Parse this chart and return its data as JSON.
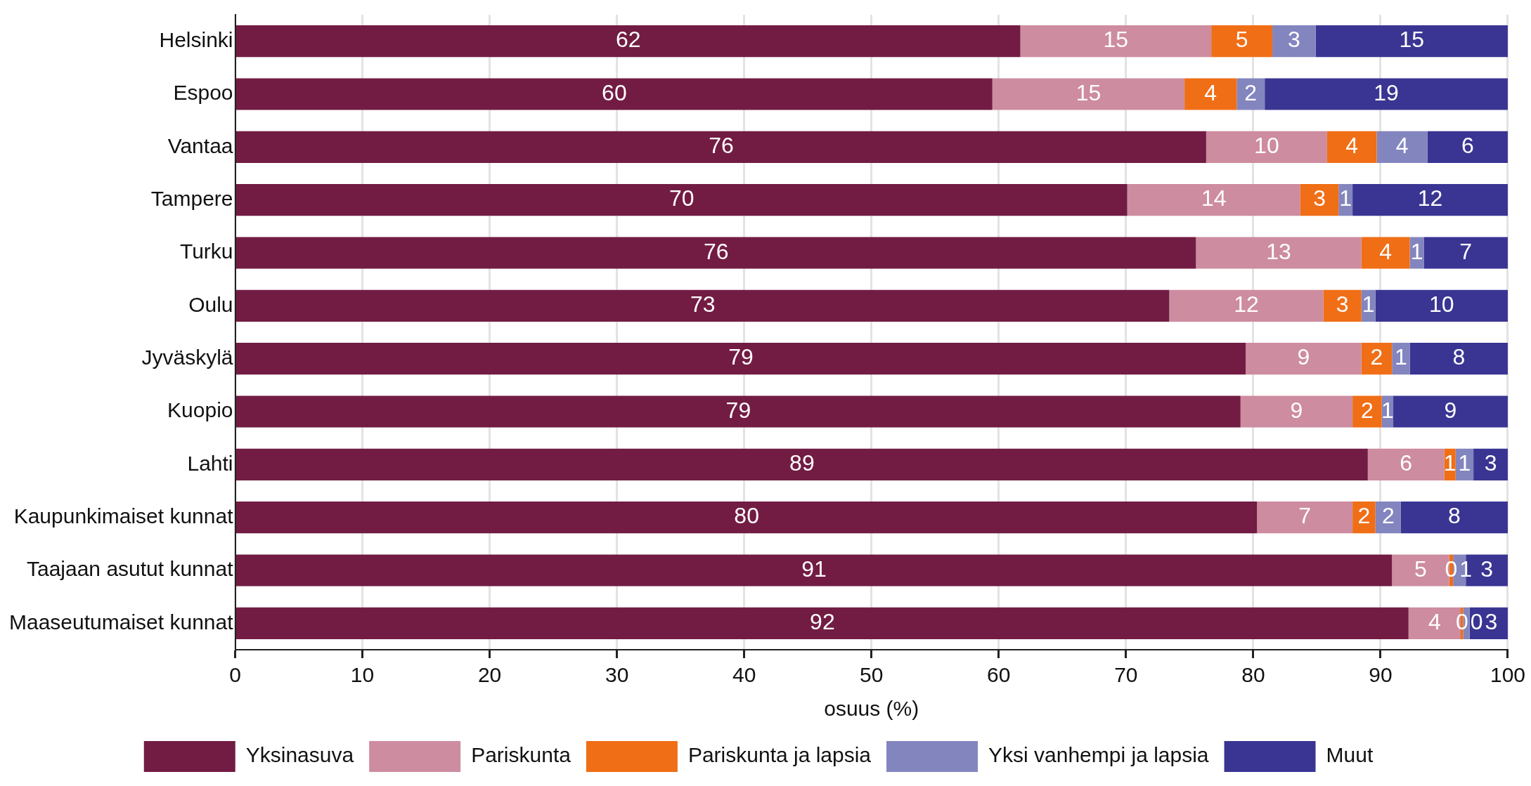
{
  "chart_data": {
    "type": "bar",
    "orientation": "horizontal",
    "stacked": true,
    "xlabel": "osuus (%)",
    "categories": [
      "Helsinki",
      "Espoo",
      "Vantaa",
      "Tampere",
      "Turku",
      "Oulu",
      "Jyväskylä",
      "Kuopio",
      "Lahti",
      "Kaupunkimaiset kunnat",
      "Taajaan asutut kunnat",
      "Maaseutumaiset kunnat"
    ],
    "series": [
      {
        "name": "Yksinasuva",
        "color": "#721c43",
        "values": [
          61.7,
          59.5,
          76.3,
          70.1,
          75.5,
          73.4,
          79.4,
          79.0,
          89.0,
          80.3,
          90.9,
          92.2
        ],
        "value_labels": [
          "62",
          "60",
          "76",
          "70",
          "76",
          "73",
          "79",
          "79",
          "89",
          "80",
          "91",
          "92"
        ]
      },
      {
        "name": "Pariskunta",
        "color": "#cd8c9f",
        "values": [
          15.0,
          15.1,
          9.5,
          13.6,
          13.0,
          12.1,
          9.1,
          8.8,
          6.0,
          7.5,
          4.5,
          4.1
        ],
        "value_labels": [
          "15",
          "15",
          "10",
          "14",
          "13",
          "12",
          "9",
          "9",
          "6",
          "7",
          "5",
          "4"
        ]
      },
      {
        "name": "Pariskunta ja lapsia",
        "color": "#f06e16",
        "values": [
          4.8,
          4.1,
          3.9,
          3.0,
          3.8,
          3.0,
          2.4,
          2.3,
          0.9,
          1.8,
          0.3,
          0.2
        ],
        "value_labels": [
          "5",
          "4",
          "4",
          "3",
          "4",
          "3",
          "2",
          "2",
          "1",
          "2",
          "0",
          "0"
        ]
      },
      {
        "name": "Yksi vanhempi ja lapsia",
        "color": "#8385bf",
        "values": [
          3.4,
          2.2,
          4.0,
          1.1,
          1.1,
          1.1,
          1.4,
          0.9,
          1.4,
          2.0,
          1.0,
          0.5
        ],
        "value_labels": [
          "3",
          "2",
          "4",
          "1",
          "1",
          "1",
          "1",
          "1",
          "1",
          "2",
          "1",
          "0"
        ]
      },
      {
        "name": "Muut",
        "color": "#3a3592",
        "values": [
          15.1,
          19.1,
          6.3,
          12.2,
          6.6,
          10.4,
          7.7,
          9.0,
          2.7,
          8.4,
          3.3,
          3.0
        ],
        "value_labels": [
          "15",
          "19",
          "6",
          "12",
          "7",
          "10",
          "8",
          "9",
          "3",
          "8",
          "3",
          "3"
        ]
      }
    ],
    "xlim": [
      0,
      100
    ],
    "xticks": [
      0,
      10,
      20,
      30,
      40,
      50,
      60,
      70,
      80,
      90,
      100
    ],
    "grid": "x",
    "legend": "bottom"
  }
}
